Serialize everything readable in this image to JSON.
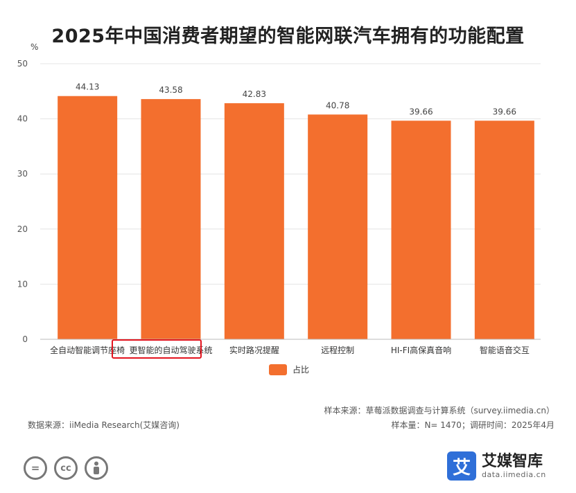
{
  "chart_data": {
    "type": "bar",
    "title": "2025年中国消费者期望的智能网联汽车拥有的功能配置",
    "y_unit": "%",
    "categories": [
      "全自动智能调节座椅",
      "更智能的自动驾驶系统",
      "实时路况提醒",
      "远程控制",
      "HI-FI高保真音响",
      "智能语音交互"
    ],
    "values": [
      44.13,
      43.58,
      42.83,
      40.78,
      39.66,
      39.66
    ],
    "value_labels": [
      "44.13",
      "43.58",
      "42.83",
      "40.78",
      "39.66",
      "39.66"
    ],
    "ylim": [
      0,
      50
    ],
    "yticks": [
      0,
      10,
      20,
      30,
      40,
      50
    ],
    "legend": [
      "占比"
    ],
    "legend_position": "bottom",
    "bar_color": "#f36f2e",
    "highlighted_category": "更智能的自动驾驶系统",
    "highlight_color": "#e3141e",
    "grid": true
  },
  "notes": {
    "sample_source": "样本来源：草莓派数据调查与计算系统（survey.iimedia.cn）",
    "sample_size": "样本量：N= 1470；调研时间：2025年4月",
    "data_source": "数据来源：iiMedia Research(艾媒咨询)"
  },
  "license_icons": [
    "equal-icon",
    "cc-icon",
    "person-icon"
  ],
  "brand": {
    "logo_char": "艾",
    "name": "艾媒智库",
    "url": "data.iimedia.cn",
    "color": "#2f6fd8"
  }
}
